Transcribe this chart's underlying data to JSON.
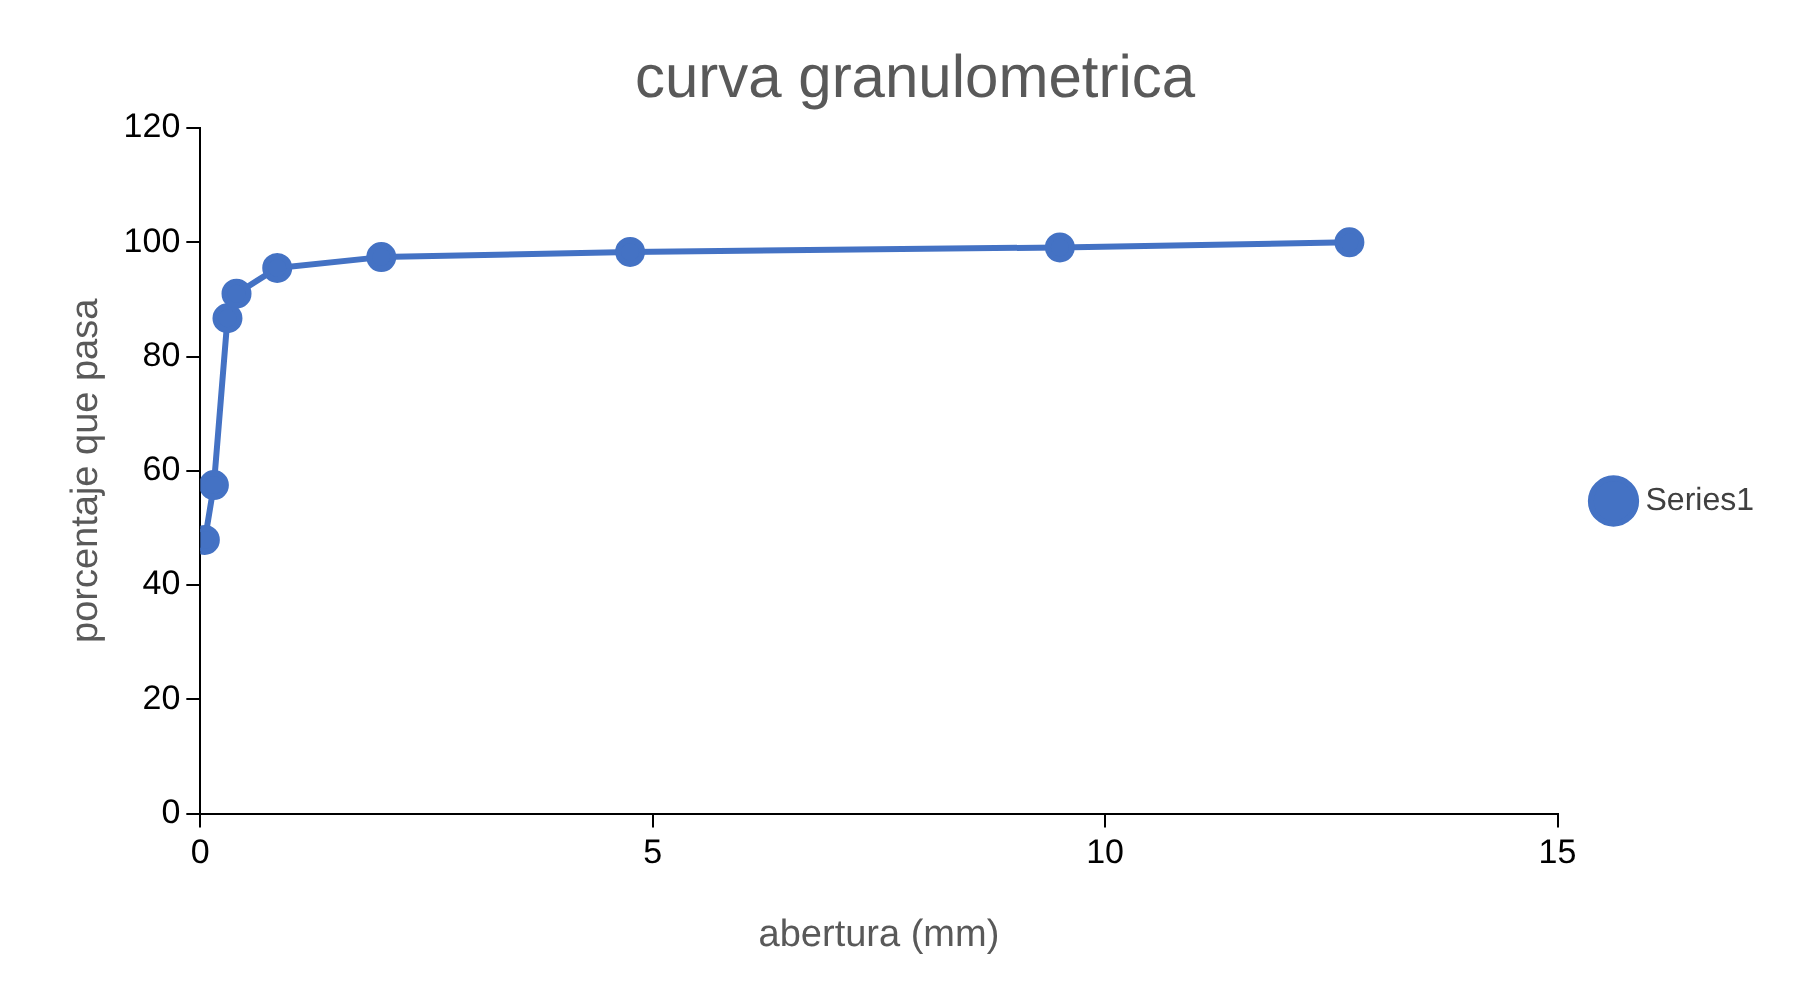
{
  "chart_data": {
    "type": "line",
    "title": "curva granulometrica",
    "xlabel": "abertura (mm)",
    "ylabel": "porcentaje que pasa",
    "x": [
      0.05,
      0.15,
      0.3,
      0.4,
      0.85,
      2,
      4.75,
      9.5,
      12.7
    ],
    "series": [
      {
        "name": "Series1",
        "color": "#4472c4",
        "values": [
          47.9,
          57.5,
          86.7,
          91,
          95.5,
          97.4,
          98.3,
          99.1,
          100
        ]
      }
    ],
    "xlim": [
      0,
      15
    ],
    "xticks": [
      0,
      5,
      10,
      15
    ],
    "ylim": [
      0,
      120
    ],
    "yticks": [
      0,
      20,
      40,
      60,
      80,
      100,
      120
    ],
    "grid": false,
    "legend": "right",
    "marker": "circle",
    "line_style": "solid"
  }
}
